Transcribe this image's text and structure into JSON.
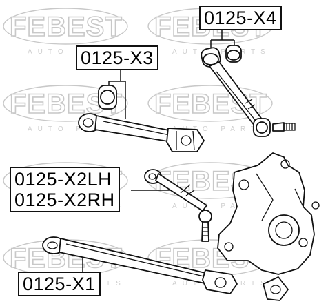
{
  "labels": {
    "x4": "0125-X4",
    "x3": "0125-X3",
    "x2lh": "0125-X2LH",
    "x2rh": "0125-X2RH",
    "x1": "0125-X1"
  },
  "watermark": {
    "brand": "FEBEST",
    "sub": "AUTO PARTS",
    "color": "#c8c8c8"
  }
}
